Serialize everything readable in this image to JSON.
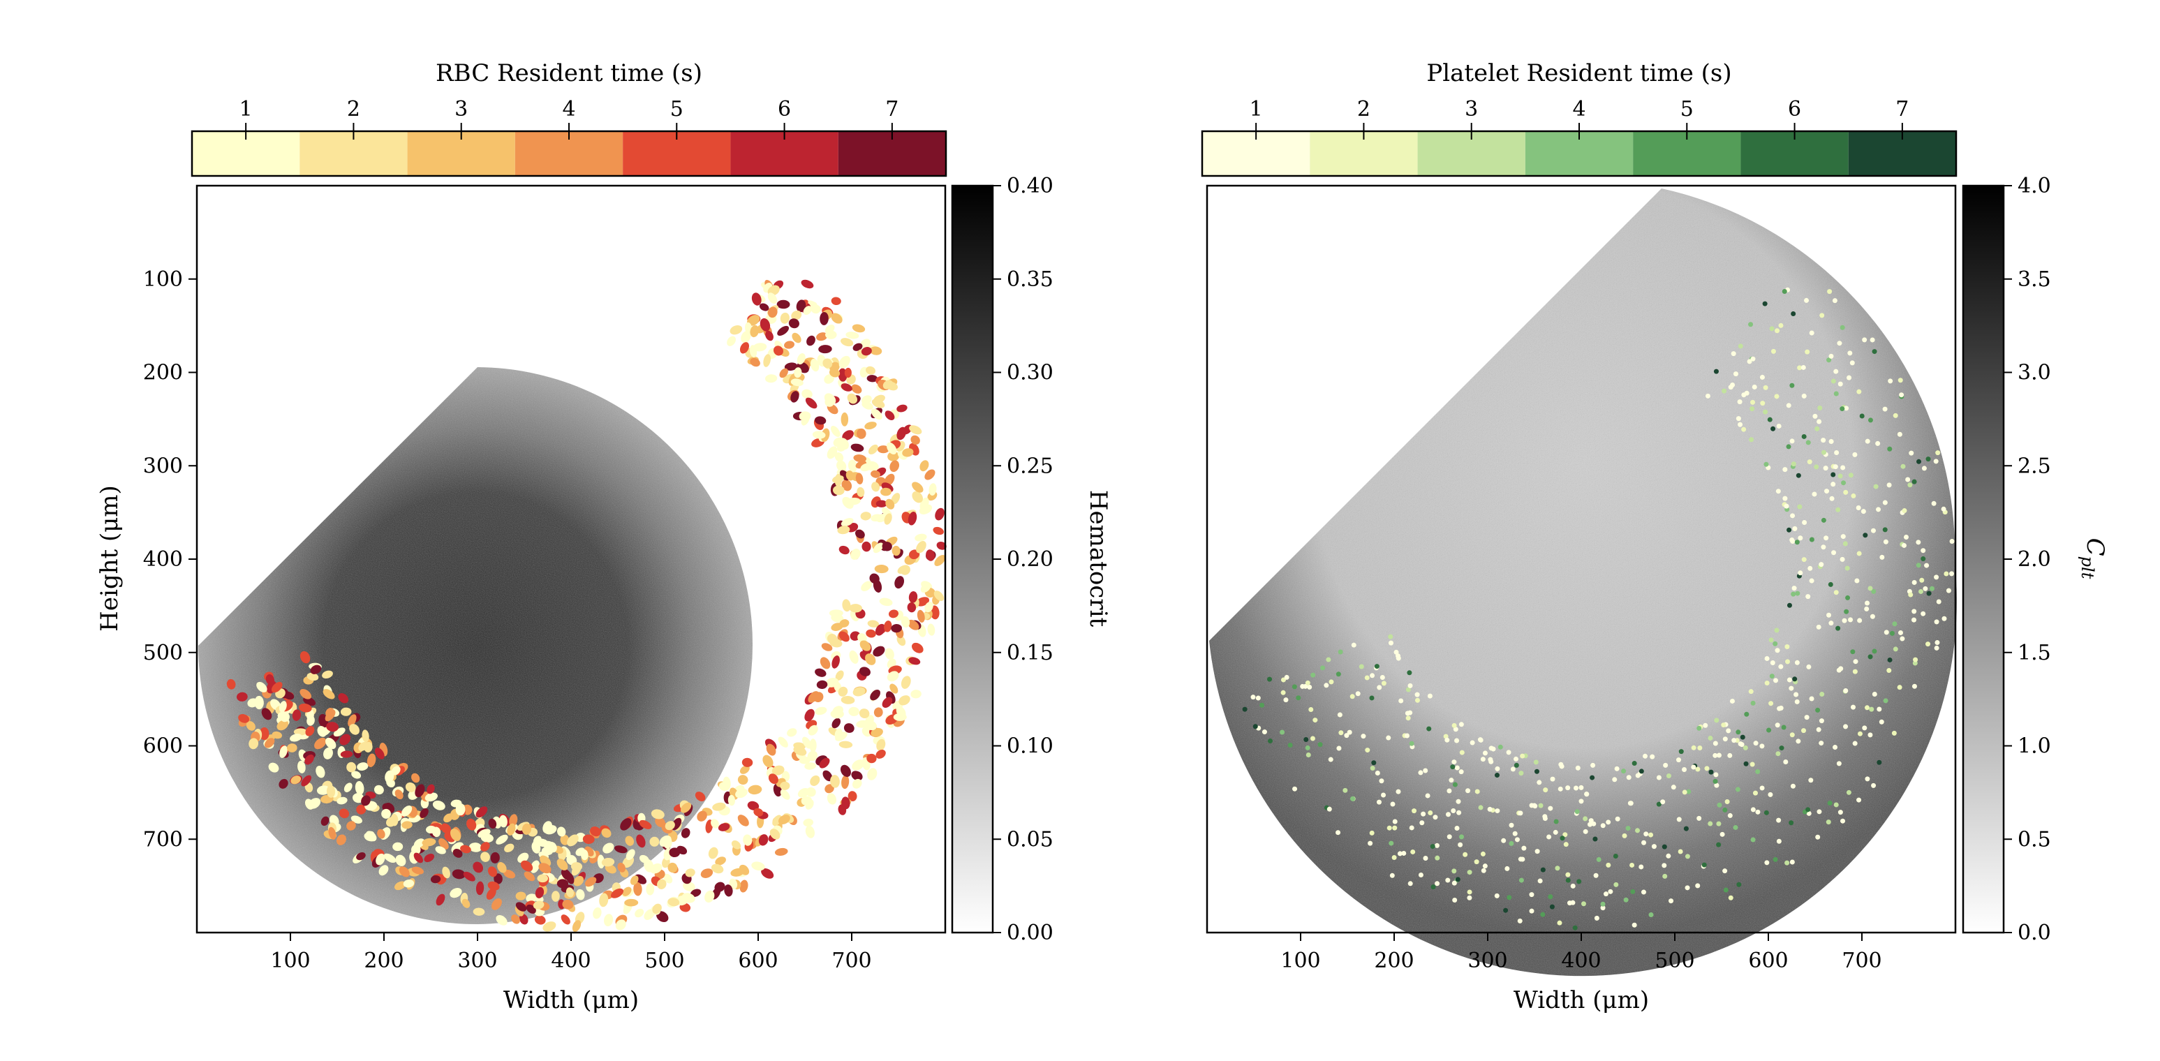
{
  "chart_data": [
    {
      "type": "heatmap",
      "xlabel": "Width (μm)",
      "ylabel": "Height (μm)",
      "xticks": [
        100,
        200,
        300,
        400,
        500,
        600,
        700
      ],
      "yticks": [
        100,
        200,
        300,
        400,
        500,
        600,
        700
      ],
      "xlim": [
        0,
        800
      ],
      "ylim": [
        800,
        0
      ],
      "colorbar": {
        "label": "Hematocrit",
        "range": [
          0.0,
          0.4
        ],
        "ticks": [
          "0.00",
          "0.05",
          "0.10",
          "0.15",
          "0.20",
          "0.25",
          "0.30",
          "0.35",
          "0.40"
        ],
        "cmap": "grays"
      },
      "overlay": {
        "label": "RBC Resident time (s)",
        "categories": [
          "1",
          "2",
          "3",
          "4",
          "5",
          "6",
          "7"
        ],
        "colors": [
          "#ffffcc",
          "#fbe59a",
          "#f6c26b",
          "#f09450",
          "#e34a33",
          "#bd2430",
          "#7c1228"
        ]
      },
      "region": {
        "shape": "quarter-wedge-plus-half-disk",
        "center": [
          402,
          400
        ],
        "radius": 398
      }
    },
    {
      "type": "heatmap",
      "xlabel": "Width (μm)",
      "xticks": [
        100,
        200,
        300,
        400,
        500,
        600,
        700
      ],
      "xlim": [
        0,
        800
      ],
      "ylim": [
        800,
        0
      ],
      "colorbar": {
        "label": "C_plt",
        "range": [
          0.0,
          4.0
        ],
        "ticks": [
          "0.0",
          "0.5",
          "1.0",
          "1.5",
          "2.0",
          "2.5",
          "3.0",
          "3.5",
          "4.0"
        ],
        "cmap": "grays"
      },
      "overlay": {
        "label": "Platelet Resident time (s)",
        "categories": [
          "1",
          "2",
          "3",
          "4",
          "5",
          "6",
          "7"
        ],
        "colors": [
          "#ffffe0",
          "#eef6b8",
          "#c3e29e",
          "#85c37e",
          "#549d58",
          "#2f6f3e",
          "#1b4631"
        ]
      },
      "region": {
        "shape": "quarter-wedge-plus-half-disk",
        "center": [
          402,
          400
        ],
        "radius": 398
      }
    }
  ]
}
